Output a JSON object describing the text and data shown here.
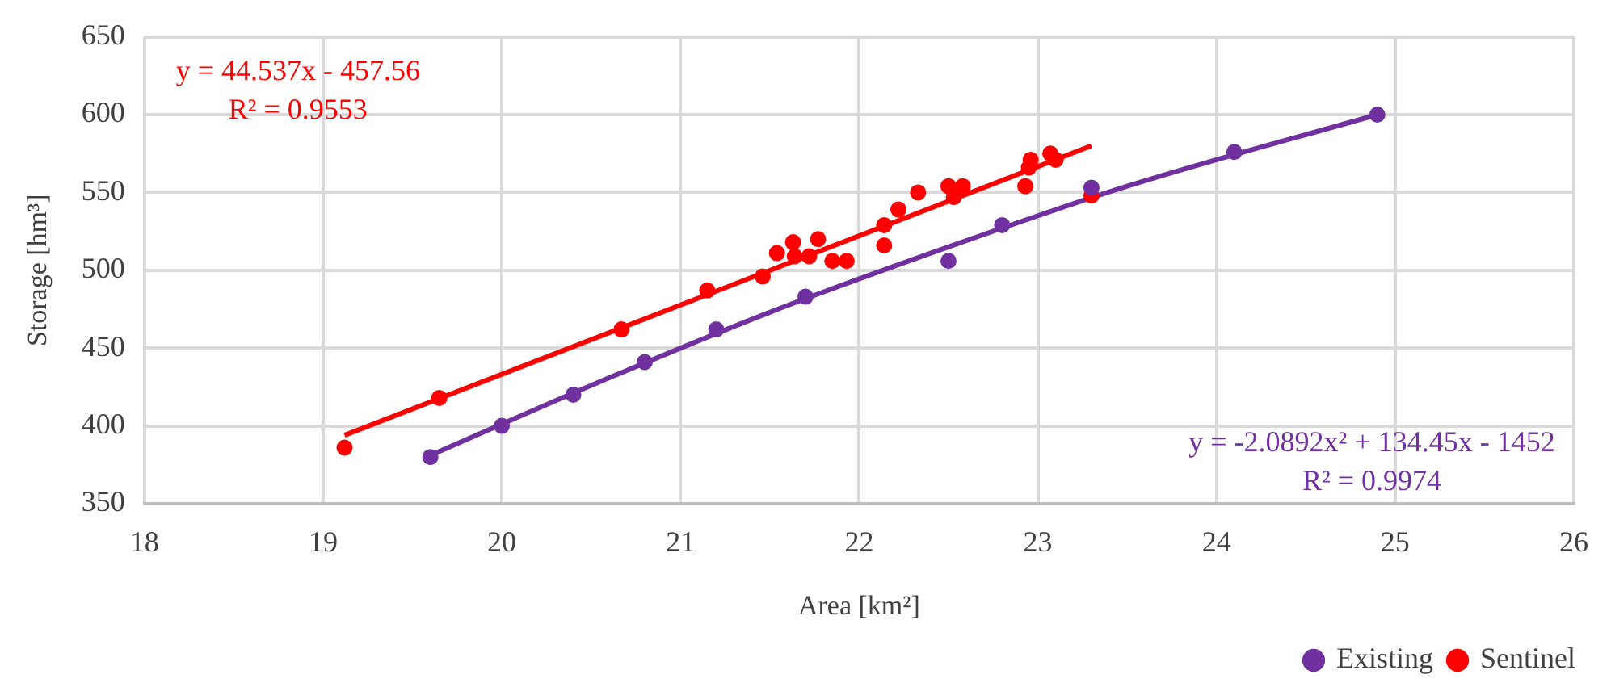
{
  "chart_data": {
    "type": "scatter",
    "xlabel": "Area [km²]",
    "ylabel": "Storage [hm³]",
    "xlim": [
      18,
      26
    ],
    "xticks": [
      18,
      19,
      20,
      21,
      22,
      23,
      24,
      25,
      26
    ],
    "ylim": [
      350,
      650
    ],
    "yticks": [
      350,
      400,
      450,
      500,
      550,
      600,
      650
    ],
    "grid": true,
    "legend": "bottom right",
    "marker": "circle",
    "annotations": [
      "y = 44.537x - 457.56",
      "R² = 0.9553",
      "y = -2.0892x² + 134.45x - 1452",
      "R² = 0.9974"
    ],
    "series": [
      {
        "name": "Existing",
        "color": "#7030a0",
        "x": [
          19.6,
          20.0,
          20.4,
          20.8,
          21.2,
          21.7,
          22.5,
          22.8,
          23.3,
          24.1,
          24.9
        ],
        "values": [
          380,
          400,
          420,
          441,
          462,
          483,
          506,
          529,
          553,
          576,
          600
        ]
      },
      {
        "name": "Sentinel",
        "color": "#ff0000",
        "x": [
          19.12,
          19.65,
          20.67,
          21.15,
          21.46,
          21.54,
          21.63,
          21.64,
          21.72,
          21.77,
          21.85,
          21.93,
          22.14,
          22.14,
          22.22,
          22.33,
          22.5,
          22.53,
          22.58,
          22.93,
          22.95,
          22.96,
          23.07,
          23.1,
          23.3
        ],
        "values": [
          386,
          418,
          462,
          487,
          496,
          511,
          518,
          509,
          509,
          520,
          506,
          506,
          516,
          529,
          539,
          550,
          554,
          547,
          554,
          554,
          566,
          571,
          575,
          571,
          548
        ]
      },
      {
        "type": "line",
        "color": "#7030a0",
        "marker": "none",
        "x": [
          19.6,
          20.5,
          21.5,
          22.5,
          23.5,
          24.9
        ],
        "values": [
          381,
          426,
          473,
          515,
          554,
          600
        ]
      },
      {
        "type": "line",
        "color": "#ff0000",
        "marker": "none",
        "x": [
          19.12,
          23.3
        ],
        "values": [
          394,
          580
        ]
      }
    ]
  }
}
